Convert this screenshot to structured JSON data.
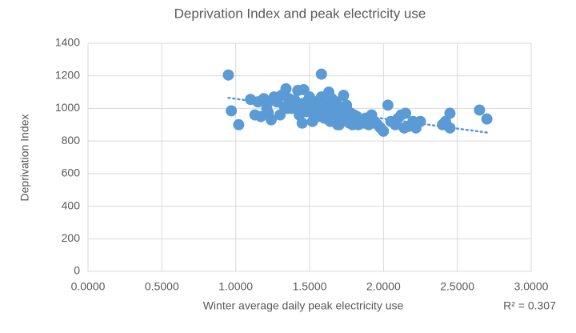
{
  "chart_data": {
    "type": "scatter",
    "title": "Deprivation Index and peak electricity use",
    "x_label": "Winter average daily peak electricity use",
    "y_label": "Deprivation Index",
    "annotation": "R² = 0.307",
    "color": "#5b9bd5",
    "grid": true,
    "xlim": [
      0,
      3
    ],
    "ylim": [
      0,
      1400
    ],
    "xticks": [
      {
        "value": 0,
        "label": "0.0000"
      },
      {
        "value": 0.5,
        "label": "0.5000"
      },
      {
        "value": 1,
        "label": "1.0000"
      },
      {
        "value": 1.5,
        "label": "1.5000"
      },
      {
        "value": 2,
        "label": "2.0000"
      },
      {
        "value": 2.5,
        "label": "2.5000"
      },
      {
        "value": 3,
        "label": "3.0000"
      }
    ],
    "yticks": [
      0,
      200,
      400,
      600,
      800,
      1000,
      1200,
      1400
    ],
    "x": [
      0.95,
      0.97,
      1.02,
      1.1,
      1.13,
      1.15,
      1.17,
      1.19,
      1.21,
      1.22,
      1.24,
      1.26,
      1.28,
      1.3,
      1.31,
      1.33,
      1.34,
      1.36,
      1.38,
      1.4,
      1.42,
      1.43,
      1.44,
      1.45,
      1.46,
      1.47,
      1.48,
      1.49,
      1.5,
      1.51,
      1.52,
      1.53,
      1.54,
      1.55,
      1.56,
      1.57,
      1.58,
      1.59,
      1.6,
      1.61,
      1.62,
      1.63,
      1.64,
      1.65,
      1.66,
      1.67,
      1.68,
      1.69,
      1.7,
      1.71,
      1.72,
      1.73,
      1.74,
      1.75,
      1.76,
      1.77,
      1.78,
      1.79,
      1.8,
      1.82,
      1.83,
      1.85,
      1.87,
      1.88,
      1.9,
      1.92,
      1.94,
      1.96,
      1.98,
      2.0,
      2.03,
      2.05,
      2.08,
      2.1,
      2.12,
      2.14,
      2.15,
      2.17,
      2.2,
      2.22,
      2.25,
      2.4,
      2.42,
      2.45,
      2.45,
      2.65,
      2.7,
      1.45,
      1.55,
      1.65,
      1.75,
      1.6,
      1.5,
      1.7,
      1.8,
      1.35,
      1.25,
      1.62,
      1.72,
      1.58
    ],
    "y": [
      1205,
      985,
      900,
      1055,
      960,
      1040,
      950,
      1060,
      1000,
      975,
      930,
      1070,
      1040,
      960,
      1080,
      1010,
      1120,
      1060,
      1000,
      1050,
      1110,
      960,
      1000,
      910,
      1115,
      1030,
      980,
      1050,
      1070,
      1010,
      920,
      960,
      1040,
      1000,
      950,
      990,
      1210,
      1060,
      940,
      1010,
      980,
      1100,
      920,
      1000,
      970,
      950,
      1040,
      900,
      1010,
      960,
      920,
      1080,
      950,
      1000,
      930,
      910,
      970,
      900,
      960,
      950,
      900,
      930,
      910,
      940,
      900,
      960,
      920,
      900,
      880,
      860,
      1020,
      920,
      900,
      940,
      960,
      880,
      970,
      890,
      920,
      880,
      920,
      900,
      920,
      970,
      880,
      990,
      935,
      1030,
      1000,
      1060,
      1020,
      970,
      1040,
      900,
      940,
      1000,
      1050,
      1030,
      990,
      1070
    ],
    "trendline": {
      "x": [
        0.95,
        2.7
      ],
      "y": [
        1065,
        852
      ]
    }
  }
}
